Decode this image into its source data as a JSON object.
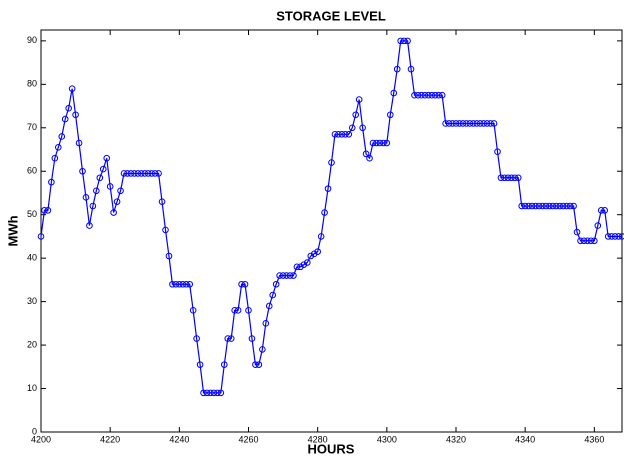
{
  "chart_data": {
    "type": "line",
    "title": "STORAGE LEVEL",
    "x_label": "HOURS",
    "y_label": "MWh",
    "x": [
      4200,
      4201,
      4202,
      4203,
      4204,
      4205,
      4206,
      4207,
      4208,
      4209,
      4210,
      4211,
      4212,
      4213,
      4214,
      4215,
      4216,
      4217,
      4218,
      4219,
      4220,
      4221,
      4222,
      4223,
      4224,
      4225,
      4226,
      4227,
      4228,
      4229,
      4230,
      4231,
      4232,
      4233,
      4234,
      4235,
      4236,
      4237,
      4238,
      4239,
      4240,
      4241,
      4242,
      4243,
      4244,
      4245,
      4246,
      4247,
      4248,
      4249,
      4250,
      4251,
      4252,
      4253,
      4254,
      4255,
      4256,
      4257,
      4258,
      4259,
      4260,
      4261,
      4262,
      4263,
      4264,
      4265,
      4266,
      4267,
      4268,
      4269,
      4270,
      4271,
      4272,
      4273,
      4274,
      4275,
      4276,
      4277,
      4278,
      4279,
      4280,
      4281,
      4282,
      4283,
      4284,
      4285,
      4286,
      4287,
      4288,
      4289,
      4290,
      4291,
      4292,
      4293,
      4294,
      4295,
      4296,
      4297,
      4298,
      4299,
      4300,
      4301,
      4302,
      4303,
      4304,
      4305,
      4306,
      4307,
      4308,
      4309,
      4310,
      4311,
      4312,
      4313,
      4314,
      4315,
      4316,
      4317,
      4318,
      4319,
      4320,
      4321,
      4322,
      4323,
      4324,
      4325,
      4326,
      4327,
      4328,
      4329,
      4330,
      4331,
      4332,
      4333,
      4334,
      4335,
      4336,
      4337,
      4338,
      4339,
      4340,
      4341,
      4342,
      4343,
      4344,
      4345,
      4346,
      4347,
      4348,
      4349,
      4350,
      4351,
      4352,
      4353,
      4354,
      4355,
      4356,
      4357,
      4358,
      4359,
      4360,
      4361,
      4362,
      4363,
      4364,
      4365,
      4366,
      4367,
      4368
    ],
    "series": [
      {
        "name": "Storage level",
        "color": "#0000ff",
        "values": [
          45,
          51,
          51,
          57.5,
          63,
          65.5,
          68,
          72,
          74.5,
          79,
          73,
          66.5,
          60,
          54,
          47.5,
          52,
          55.5,
          58.5,
          60.5,
          63,
          56.5,
          50.5,
          53,
          55.5,
          59.5,
          59.5,
          59.5,
          59.5,
          59.5,
          59.5,
          59.5,
          59.5,
          59.5,
          59.5,
          59.5,
          53,
          46.5,
          40.5,
          34,
          34,
          34,
          34,
          34,
          34,
          28,
          21.5,
          15.5,
          9,
          9,
          9,
          9,
          9,
          9,
          15.5,
          21.5,
          21.5,
          28,
          28,
          34,
          34,
          28,
          21.5,
          15.5,
          15.5,
          19,
          25,
          29,
          31.5,
          34,
          36,
          36,
          36,
          36,
          36,
          38,
          38,
          38.5,
          39,
          40.5,
          41,
          41.5,
          45,
          50.5,
          56,
          62,
          68.5,
          68.5,
          68.5,
          68.5,
          68.5,
          70,
          73,
          76.5,
          70,
          64,
          63,
          66.5,
          66.5,
          66.5,
          66.5,
          66.5,
          73,
          78,
          83.5,
          90,
          90,
          90,
          83.5,
          77.5,
          77.5,
          77.5,
          77.5,
          77.5,
          77.5,
          77.5,
          77.5,
          77.5,
          71,
          71,
          71,
          71,
          71,
          71,
          71,
          71,
          71,
          71,
          71,
          71,
          71,
          71,
          71,
          64.5,
          58.5,
          58.5,
          58.5,
          58.5,
          58.5,
          58.5,
          52,
          52,
          52,
          52,
          52,
          52,
          52,
          52,
          52,
          52,
          52,
          52,
          52,
          52,
          52,
          52,
          46,
          44,
          44,
          44,
          44,
          44,
          47.5,
          51,
          51,
          45,
          45,
          45,
          45,
          45
        ]
      }
    ],
    "xlim": [
      4200,
      4368
    ],
    "ylim": [
      0,
      92.5
    ],
    "xticks": [
      4200,
      4220,
      4240,
      4260,
      4280,
      4300,
      4320,
      4340,
      4360
    ],
    "yticks": [
      0,
      10,
      20,
      30,
      40,
      50,
      60,
      70,
      80,
      90
    ],
    "grid": false
  }
}
